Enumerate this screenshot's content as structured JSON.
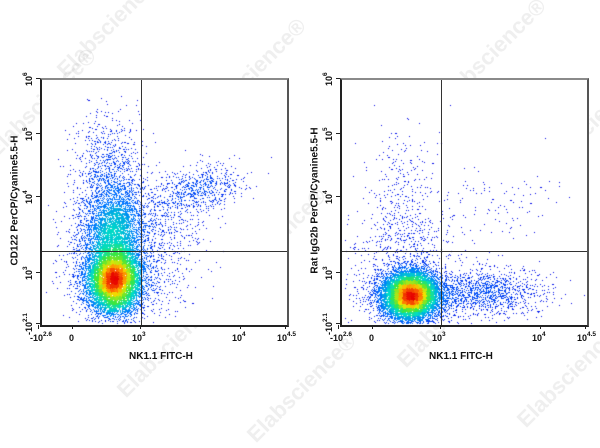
{
  "watermark": "Elabscience®",
  "chart_data": [
    {
      "type": "scatter",
      "title": "",
      "xlabel": "NK1.1 FITC-H",
      "ylabel": "CD122 PerCP/Cyanine5.5-H",
      "x_ticks": [
        "-10^2.6",
        "0",
        "10^3",
        "10^4",
        "10^4.5"
      ],
      "y_ticks": [
        "-10^2.1",
        "10^3",
        "10^4",
        "10^5",
        "10^6"
      ],
      "scale": "biexponential",
      "quadrant_gate": {
        "x": 900,
        "y": 1800
      },
      "populations": [
        {
          "name": "NK1.1- CD122- (main)",
          "x_center": 150,
          "y_center": 700,
          "density": "high"
        },
        {
          "name": "NK1.1- CD122+",
          "x_center": 150,
          "y_center": 6000,
          "density": "medium"
        },
        {
          "name": "NK1.1+ CD122+ (NK cells)",
          "x_center": 2500,
          "y_center": 15000,
          "density": "low-medium"
        }
      ]
    },
    {
      "type": "scatter",
      "title": "",
      "xlabel": "NK1.1 FITC-H",
      "ylabel": "Rat IgG2b PerCP/Cyanine5.5-H",
      "x_ticks": [
        "-10^2.6",
        "0",
        "10^3",
        "10^4",
        "10^4.5"
      ],
      "y_ticks": [
        "-10^2.1",
        "10^3",
        "10^4",
        "10^5",
        "10^6"
      ],
      "scale": "biexponential",
      "quadrant_gate": {
        "x": 900,
        "y": 1800
      },
      "populations": [
        {
          "name": "NK1.1- isotype- (main)",
          "x_center": 150,
          "y_center": 500,
          "density": "high"
        },
        {
          "name": "NK1.1+ isotype- ",
          "x_center": 2500,
          "y_center": 600,
          "density": "low-medium"
        },
        {
          "name": "sparse events upper",
          "x_center": 300,
          "y_center": 20000,
          "density": "low"
        }
      ]
    }
  ],
  "panels": [
    {
      "ylabel": "CD122 PerCP/Cyanine5.5-H",
      "xlabel": "NK1.1 FITC-H"
    },
    {
      "ylabel": "Rat IgG2b PerCP/Cyanine5.5-H",
      "xlabel": "NK1.1 FITC-H"
    }
  ],
  "ticks": {
    "x": [
      {
        "base": "-10",
        "exp": "2.6"
      },
      {
        "base": "0",
        "exp": ""
      },
      {
        "base": "10",
        "exp": "3"
      },
      {
        "base": "10",
        "exp": "4"
      },
      {
        "base": "10",
        "exp": "4.5"
      }
    ],
    "y": [
      {
        "base": "-10",
        "exp": "2.1"
      },
      {
        "base": "10",
        "exp": "3"
      },
      {
        "base": "10",
        "exp": "4"
      },
      {
        "base": "10",
        "exp": "5"
      },
      {
        "base": "10",
        "exp": "6"
      }
    ]
  }
}
